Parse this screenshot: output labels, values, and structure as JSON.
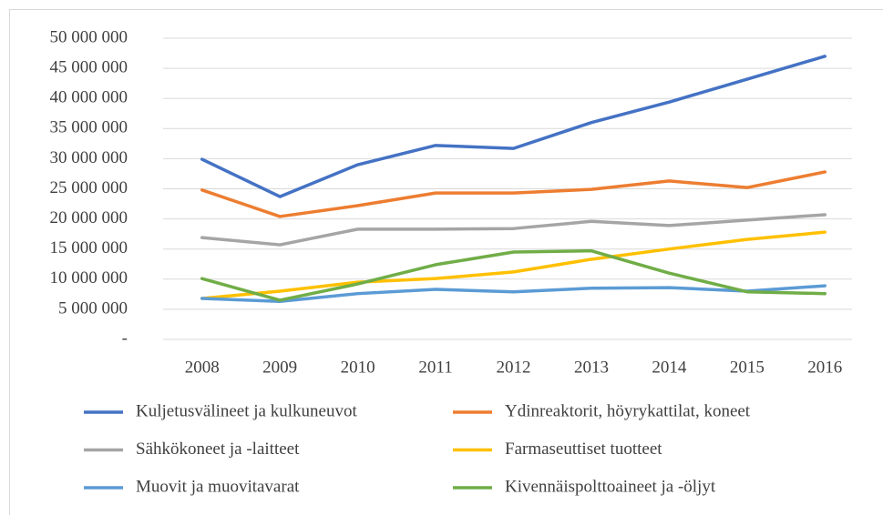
{
  "chart_data": {
    "type": "line",
    "categories": [
      "2008",
      "2009",
      "2010",
      "2011",
      "2012",
      "2013",
      "2014",
      "2015",
      "2016"
    ],
    "series": [
      {
        "name": "Kuljetusvälineet ja kulkuneuvot",
        "color": "#4472c4",
        "values": [
          29900000,
          23700000,
          29000000,
          32200000,
          31700000,
          36000000,
          39400000,
          43200000,
          47000000
        ]
      },
      {
        "name": "Ydinreaktorit, höyrykattilat, koneet",
        "color": "#ed7d31",
        "values": [
          24800000,
          20400000,
          22200000,
          24300000,
          24300000,
          24900000,
          26300000,
          25200000,
          27800000
        ]
      },
      {
        "name": "Sähkökoneet ja -laitteet",
        "color": "#a5a5a5",
        "values": [
          16900000,
          15700000,
          18300000,
          18300000,
          18400000,
          19600000,
          18900000,
          19800000,
          20700000
        ]
      },
      {
        "name": "Farmaseuttiset tuotteet",
        "color": "#ffc000",
        "values": [
          6800000,
          8000000,
          9500000,
          10100000,
          11200000,
          13300000,
          15000000,
          16600000,
          17800000
        ]
      },
      {
        "name": "Muovit ja muovitavarat",
        "color": "#5b9bd5",
        "values": [
          6800000,
          6300000,
          7600000,
          8300000,
          7900000,
          8500000,
          8600000,
          8000000,
          8900000
        ]
      },
      {
        "name": "Kivennäispolttoaineet ja -öljyt",
        "color": "#70ad47",
        "values": [
          10100000,
          6500000,
          9200000,
          12400000,
          14500000,
          14700000,
          11000000,
          7900000,
          7600000
        ]
      }
    ],
    "ylim": [
      0,
      50000000
    ],
    "yticks": [
      {
        "value": 0,
        "label": "-"
      },
      {
        "value": 5000000,
        "label": "5 000 000"
      },
      {
        "value": 10000000,
        "label": "10 000 000"
      },
      {
        "value": 15000000,
        "label": "15 000 000"
      },
      {
        "value": 20000000,
        "label": "20 000 000"
      },
      {
        "value": 25000000,
        "label": "25 000 000"
      },
      {
        "value": 30000000,
        "label": "30 000 000"
      },
      {
        "value": 35000000,
        "label": "35 000 000"
      },
      {
        "value": 40000000,
        "label": "40 000 000"
      },
      {
        "value": 45000000,
        "label": "45 000 000"
      },
      {
        "value": 50000000,
        "label": "50 000 000"
      }
    ],
    "grid": true,
    "legend": "bottom"
  }
}
